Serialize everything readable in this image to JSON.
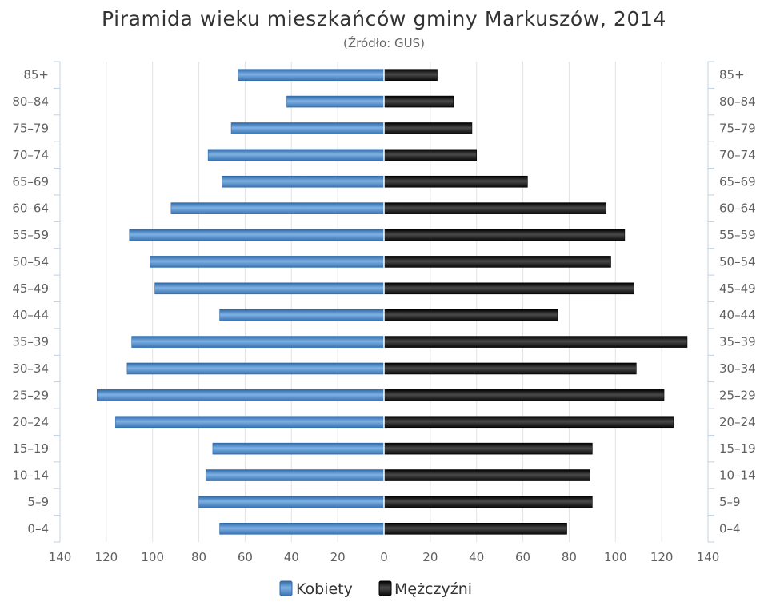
{
  "chart_data": {
    "type": "bar",
    "orientation": "horizontal",
    "title": "Piramida wieku mieszkańców gminy Markuszów, 2014",
    "subtitle": "(Źródło: GUS)",
    "categories": [
      "85+",
      "80-84",
      "75-79",
      "70-74",
      "65-69",
      "60-64",
      "55-59",
      "50-54",
      "45-49",
      "40-44",
      "35-39",
      "30-34",
      "25-29",
      "20-24",
      "15-19",
      "10-14",
      "5-9",
      "0-4"
    ],
    "series": [
      {
        "name": "Kobiety",
        "color": "#4a86c7",
        "values": [
          63,
          42,
          66,
          76,
          70,
          92,
          110,
          101,
          99,
          71,
          109,
          111,
          124,
          116,
          74,
          77,
          80,
          71
        ]
      },
      {
        "name": "Mężczyźni",
        "color": "#1a1a1a",
        "values": [
          23,
          30,
          38,
          40,
          62,
          96,
          104,
          98,
          108,
          75,
          131,
          109,
          121,
          125,
          90,
          89,
          90,
          79
        ]
      }
    ],
    "xlim": [
      -140,
      140
    ],
    "xticks": [
      "140",
      "120",
      "100",
      "80",
      "60",
      "40",
      "20",
      "0",
      "20",
      "40",
      "60",
      "80",
      "100",
      "120",
      "140"
    ],
    "grid": true,
    "legend_position": "bottom-center"
  }
}
